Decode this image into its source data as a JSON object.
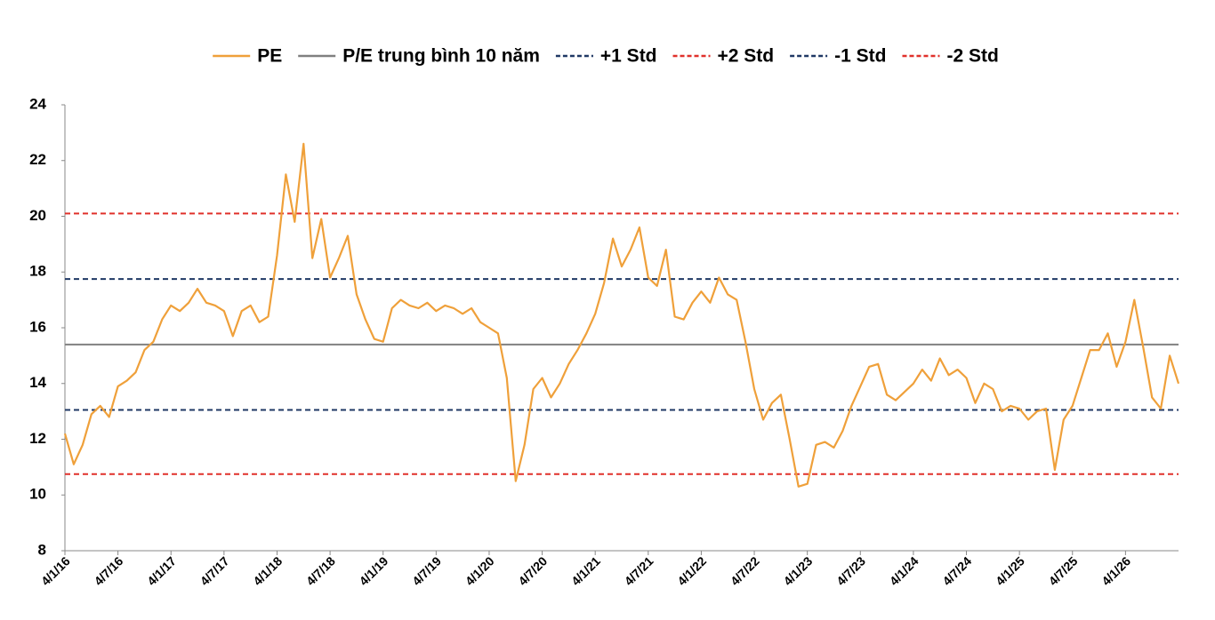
{
  "chart_data": {
    "type": "line",
    "categories": [
      "4/1/16",
      null,
      null,
      null,
      null,
      null,
      "4/7/16",
      null,
      null,
      null,
      null,
      null,
      "4/1/17",
      null,
      null,
      null,
      null,
      null,
      "4/7/17",
      null,
      null,
      null,
      null,
      null,
      "4/1/18",
      null,
      null,
      null,
      null,
      null,
      "4/7/18",
      null,
      null,
      null,
      null,
      null,
      "4/1/19",
      null,
      null,
      null,
      null,
      null,
      "4/7/19",
      null,
      null,
      null,
      null,
      null,
      "4/1/20",
      null,
      null,
      null,
      null,
      null,
      "4/7/20",
      null,
      null,
      null,
      null,
      null,
      "4/1/21",
      null,
      null,
      null,
      null,
      null,
      "4/7/21",
      null,
      null,
      null,
      null,
      null,
      "4/1/22",
      null,
      null,
      null,
      null,
      null,
      "4/7/22",
      null,
      null,
      null,
      null,
      null,
      "4/1/23",
      null,
      null,
      null,
      null,
      null,
      "4/7/23",
      null,
      null,
      null,
      null,
      null,
      "4/1/24",
      null,
      null,
      null,
      null,
      null,
      "4/7/24",
      null,
      null,
      null,
      null,
      null,
      "4/1/25",
      null,
      null,
      null,
      null,
      null,
      "4/7/25",
      null,
      null,
      null,
      null,
      null,
      "4/1/26",
      null,
      null,
      null,
      null,
      null,
      null
    ],
    "series": [
      {
        "name": "PE",
        "color": "#EFA03A",
        "values": [
          12.2,
          11.1,
          11.8,
          12.9,
          13.2,
          12.8,
          13.9,
          14.1,
          14.4,
          15.2,
          15.5,
          16.3,
          16.8,
          16.6,
          16.9,
          17.4,
          16.9,
          16.8,
          16.6,
          15.7,
          16.6,
          16.8,
          16.2,
          16.4,
          18.6,
          21.5,
          19.8,
          22.6,
          18.5,
          19.9,
          17.8,
          18.5,
          19.3,
          17.2,
          16.3,
          15.6,
          15.5,
          16.7,
          17.0,
          16.8,
          16.7,
          16.9,
          16.6,
          16.8,
          16.7,
          16.5,
          16.7,
          16.2,
          16.0,
          15.8,
          14.2,
          10.5,
          11.8,
          13.8,
          14.2,
          13.5,
          14.0,
          14.7,
          15.2,
          15.8,
          16.5,
          17.6,
          19.2,
          18.2,
          18.8,
          19.6,
          17.8,
          17.5,
          18.8,
          16.4,
          16.3,
          16.9,
          17.3,
          16.9,
          17.8,
          17.2,
          17.0,
          15.5,
          13.8,
          12.7,
          13.3,
          13.6,
          12.0,
          10.3,
          10.4,
          11.8,
          11.9,
          11.7,
          12.3,
          13.2,
          13.9,
          14.6,
          14.7,
          13.6,
          13.4,
          13.7,
          14.0,
          14.5,
          14.1,
          14.9,
          14.3,
          14.5,
          14.2,
          13.3,
          14.0,
          13.8,
          13.0,
          13.2,
          13.1,
          12.7,
          13.0,
          13.1,
          10.9,
          12.7,
          13.2,
          14.2,
          15.2,
          15.2,
          15.8,
          14.6,
          15.5,
          17.0,
          15.3,
          13.5,
          13.1,
          15.0,
          14.0
        ]
      },
      {
        "name": "P/E trung bình 10 năm",
        "color": "#808080",
        "value": 15.4
      },
      {
        "name": "+1 Std",
        "color": "#1F3864",
        "value": 17.75,
        "dashed": true
      },
      {
        "name": "+2 Std",
        "color": "#E0302A",
        "value": 20.1,
        "dashed": true
      },
      {
        "name": "-1 Std",
        "color": "#1F3864",
        "value": 13.05,
        "dashed": true
      },
      {
        "name": "-2 Std",
        "color": "#E0302A",
        "value": 10.75,
        "dashed": true
      }
    ],
    "ylim": [
      8,
      24
    ],
    "yticks": [
      8,
      10,
      12,
      14,
      16,
      18,
      20,
      22,
      24
    ],
    "grid": false,
    "legend": "top"
  }
}
